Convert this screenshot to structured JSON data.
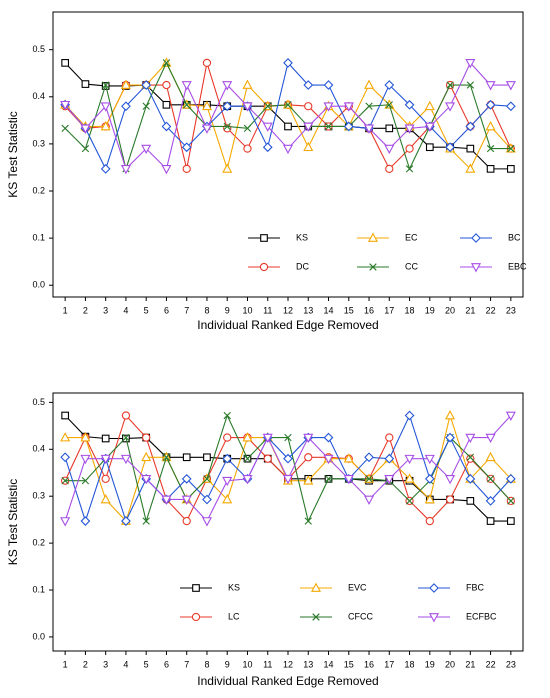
{
  "chart_data": [
    {
      "type": "line",
      "ylabel": "KS Test Statistic",
      "xlabel": "Individual Ranked Edge Removed",
      "x": [
        1,
        2,
        3,
        4,
        5,
        6,
        7,
        8,
        9,
        10,
        11,
        12,
        13,
        14,
        15,
        16,
        17,
        18,
        19,
        20,
        21,
        22,
        23
      ],
      "xlim": [
        0.4,
        23.6
      ],
      "xticks": [
        1,
        2,
        3,
        4,
        5,
        6,
        7,
        8,
        9,
        10,
        11,
        12,
        13,
        14,
        15,
        16,
        17,
        18,
        19,
        20,
        21,
        22,
        23
      ],
      "ylim": [
        -0.025,
        0.58
      ],
      "yticks": [
        {
          "value": 0,
          "label": "0.0"
        },
        0.1,
        0.2,
        0.3,
        0.4,
        0.5
      ],
      "legend": "lower center",
      "series": [
        {
          "name": "KS",
          "color": "#000000",
          "marker": "square",
          "values": [
            0.472,
            0.427,
            0.423,
            0.423,
            0.425,
            0.383,
            0.383,
            0.383,
            0.38,
            0.38,
            0.38,
            0.337,
            0.337,
            0.337,
            0.337,
            0.333,
            0.333,
            0.333,
            0.293,
            0.293,
            0.29,
            0.247,
            0.247
          ]
        },
        {
          "name": "DC",
          "color": "#e8392a",
          "marker": "circle",
          "values": [
            0.38,
            0.333,
            0.337,
            0.425,
            0.425,
            0.425,
            0.247,
            0.472,
            0.333,
            0.29,
            0.38,
            0.383,
            0.38,
            0.337,
            0.38,
            0.333,
            0.247,
            0.29,
            0.337,
            0.425,
            0.337,
            0.383,
            0.29
          ]
        },
        {
          "name": "EC",
          "color": "#f5a800",
          "marker": "triangle-up",
          "values": [
            0.383,
            0.337,
            0.337,
            0.425,
            0.425,
            0.472,
            0.383,
            0.38,
            0.247,
            0.425,
            0.38,
            0.383,
            0.293,
            0.38,
            0.337,
            0.425,
            0.383,
            0.337,
            0.38,
            0.29,
            0.247,
            0.337,
            0.29
          ]
        },
        {
          "name": "CC",
          "color": "#2a7a2a",
          "marker": "x",
          "values": [
            0.333,
            0.29,
            0.425,
            0.247,
            0.38,
            0.472,
            0.383,
            0.337,
            0.337,
            0.333,
            0.38,
            0.383,
            0.337,
            0.337,
            0.337,
            0.38,
            0.383,
            0.247,
            0.337,
            0.425,
            0.425,
            0.29,
            0.29
          ]
        },
        {
          "name": "BC",
          "color": "#2456d8",
          "marker": "diamond",
          "values": [
            0.383,
            0.333,
            0.247,
            0.38,
            0.425,
            0.337,
            0.293,
            0.337,
            0.38,
            0.38,
            0.293,
            0.472,
            0.425,
            0.425,
            0.337,
            0.333,
            0.425,
            0.383,
            0.337,
            0.293,
            0.337,
            0.383,
            0.38
          ]
        },
        {
          "name": "EBC",
          "color": "#a64de6",
          "marker": "triangle-down",
          "values": [
            0.383,
            0.333,
            0.38,
            0.247,
            0.29,
            0.247,
            0.425,
            0.333,
            0.425,
            0.38,
            0.337,
            0.29,
            0.337,
            0.38,
            0.38,
            0.333,
            0.29,
            0.333,
            0.337,
            0.38,
            0.472,
            0.425,
            0.425
          ]
        }
      ]
    },
    {
      "type": "line",
      "ylabel": "KS Test Statistic",
      "xlabel": "Individual Ranked Edge Removed",
      "x": [
        1,
        2,
        3,
        4,
        5,
        6,
        7,
        8,
        9,
        10,
        11,
        12,
        13,
        14,
        15,
        16,
        17,
        18,
        19,
        20,
        21,
        22,
        23
      ],
      "xlim": [
        0.4,
        23.6
      ],
      "xticks": [
        1,
        2,
        3,
        4,
        5,
        6,
        7,
        8,
        9,
        10,
        11,
        12,
        13,
        14,
        15,
        16,
        17,
        18,
        19,
        20,
        21,
        22,
        23
      ],
      "ylim": [
        -0.03,
        0.52
      ],
      "yticks": [
        {
          "value": 0,
          "label": "0.0"
        },
        0.1,
        0.2,
        0.3,
        0.4,
        0.5
      ],
      "legend": "lower center",
      "series": [
        {
          "name": "KS",
          "color": "#000000",
          "marker": "square",
          "values": [
            0.472,
            0.427,
            0.423,
            0.423,
            0.425,
            0.383,
            0.383,
            0.383,
            0.38,
            0.38,
            0.38,
            0.337,
            0.337,
            0.337,
            0.337,
            0.333,
            0.333,
            0.333,
            0.293,
            0.293,
            0.29,
            0.247,
            0.247
          ]
        },
        {
          "name": "LC",
          "color": "#e8392a",
          "marker": "circle",
          "values": [
            0.333,
            0.425,
            0.337,
            0.472,
            0.425,
            0.293,
            0.247,
            0.337,
            0.425,
            0.425,
            0.38,
            0.337,
            0.383,
            0.383,
            0.38,
            0.337,
            0.425,
            0.29,
            0.247,
            0.293,
            0.38,
            0.337,
            0.29
          ]
        },
        {
          "name": "EVC",
          "color": "#f5a800",
          "marker": "triangle-up",
          "values": [
            0.425,
            0.425,
            0.293,
            0.247,
            0.383,
            0.383,
            0.293,
            0.337,
            0.293,
            0.425,
            0.425,
            0.333,
            0.333,
            0.38,
            0.38,
            0.337,
            0.38,
            0.337,
            0.293,
            0.472,
            0.337,
            0.383,
            0.337
          ]
        },
        {
          "name": "CFCC",
          "color": "#2a7a2a",
          "marker": "x",
          "values": [
            0.333,
            0.333,
            0.38,
            0.425,
            0.247,
            0.383,
            0.293,
            0.337,
            0.472,
            0.38,
            0.425,
            0.425,
            0.247,
            0.337,
            0.337,
            0.337,
            0.333,
            0.29,
            0.333,
            0.425,
            0.383,
            0.337,
            0.29
          ]
        },
        {
          "name": "FBC",
          "color": "#2456d8",
          "marker": "diamond",
          "values": [
            0.383,
            0.247,
            0.38,
            0.247,
            0.337,
            0.293,
            0.337,
            0.293,
            0.38,
            0.337,
            0.425,
            0.38,
            0.425,
            0.425,
            0.337,
            0.383,
            0.38,
            0.472,
            0.337,
            0.425,
            0.337,
            0.29,
            0.337
          ]
        },
        {
          "name": "ECFBC",
          "color": "#a64de6",
          "marker": "triangle-down",
          "values": [
            0.247,
            0.38,
            0.38,
            0.38,
            0.337,
            0.293,
            0.293,
            0.247,
            0.333,
            0.337,
            0.425,
            0.337,
            0.425,
            0.38,
            0.337,
            0.293,
            0.337,
            0.38,
            0.38,
            0.337,
            0.425,
            0.425,
            0.472
          ]
        }
      ]
    }
  ]
}
